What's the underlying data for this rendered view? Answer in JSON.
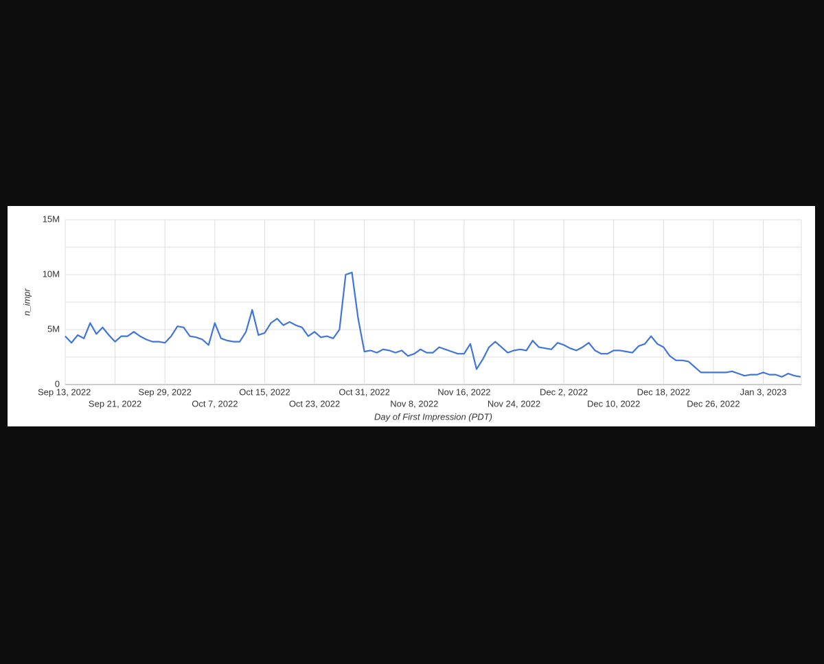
{
  "chart_data": {
    "type": "line",
    "y_label": "n_impr",
    "x_label": "Day of First Impression (PDT)",
    "color": "#3f74d8",
    "categories": [
      "Sep 13, 2022",
      null,
      null,
      null,
      null,
      null,
      null,
      null,
      "Sep 21, 2022",
      null,
      null,
      null,
      null,
      null,
      null,
      null,
      "Sep 29, 2022",
      null,
      null,
      null,
      null,
      null,
      null,
      null,
      "Oct 7, 2022",
      null,
      null,
      null,
      null,
      null,
      null,
      null,
      "Oct 15, 2022",
      null,
      null,
      null,
      null,
      null,
      null,
      null,
      "Oct 23, 2022",
      null,
      null,
      null,
      null,
      null,
      null,
      null,
      "Oct 31, 2022",
      null,
      null,
      null,
      null,
      null,
      null,
      null,
      "Nov 8, 2022",
      null,
      null,
      null,
      null,
      null,
      null,
      null,
      "Nov 16, 2022",
      null,
      null,
      null,
      null,
      null,
      null,
      null,
      "Nov 24, 2022",
      null,
      null,
      null,
      null,
      null,
      null,
      null,
      "Dec 2, 2022",
      null,
      null,
      null,
      null,
      null,
      null,
      null,
      "Dec 10, 2022",
      null,
      null,
      null,
      null,
      null,
      null,
      null,
      "Dec 18, 2022",
      null,
      null,
      null,
      null,
      null,
      null,
      null,
      "Dec 26, 2022",
      null,
      null,
      null,
      null,
      null,
      null,
      null,
      "Jan 3, 2023",
      null,
      null,
      null,
      null,
      null,
      null
    ],
    "values": [
      4400000,
      3800000,
      4500000,
      4200000,
      5600000,
      4600000,
      5200000,
      4500000,
      3900000,
      4400000,
      4400000,
      4800000,
      4400000,
      4100000,
      3900000,
      3900000,
      3800000,
      4400000,
      5300000,
      5200000,
      4400000,
      4300000,
      4100000,
      3600000,
      5600000,
      4200000,
      4000000,
      3900000,
      3900000,
      4800000,
      6800000,
      4500000,
      4700000,
      5600000,
      6000000,
      5400000,
      5700000,
      5400000,
      5200000,
      4400000,
      4800000,
      4300000,
      4400000,
      4200000,
      5000000,
      10000000,
      10200000,
      6000000,
      3000000,
      3100000,
      2900000,
      3200000,
      3100000,
      2900000,
      3100000,
      2600000,
      2800000,
      3200000,
      2900000,
      2900000,
      3400000,
      3200000,
      3000000,
      2800000,
      2800000,
      3700000,
      1400000,
      2300000,
      3400000,
      3900000,
      3400000,
      2900000,
      3100000,
      3200000,
      3100000,
      4000000,
      3400000,
      3300000,
      3200000,
      3800000,
      3600000,
      3300000,
      3100000,
      3400000,
      3800000,
      3100000,
      2800000,
      2800000,
      3100000,
      3100000,
      3000000,
      2900000,
      3500000,
      3700000,
      4400000,
      3700000,
      3400000,
      2600000,
      2200000,
      2200000,
      2100000,
      1600000,
      1100000,
      1100000,
      1100000,
      1100000,
      1100000,
      1200000,
      1000000,
      800000,
      900000,
      900000,
      1100000,
      900000,
      900000,
      700000,
      1000000,
      800000,
      700000
    ],
    "ylim": [
      0,
      15000000
    ],
    "yticks": [
      {
        "value": 0,
        "label": "0"
      },
      {
        "value": 5000000,
        "label": "5M"
      },
      {
        "value": 10000000,
        "label": "10M"
      },
      {
        "value": 15000000,
        "label": "15M"
      }
    ],
    "y_minor_ticks": [
      2500000,
      7500000,
      12500000
    ],
    "grid": true
  }
}
